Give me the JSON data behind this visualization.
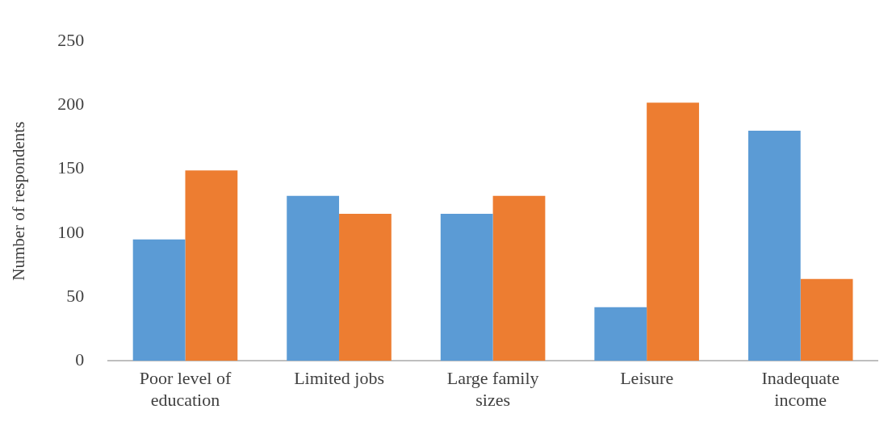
{
  "chart_data": {
    "type": "bar",
    "ylabel": "Number of respondents",
    "categories": [
      "Poor level of education",
      "Limited jobs",
      "Large family sizes",
      "Leisure",
      "Inadequate income"
    ],
    "series": [
      {
        "color": "#5b9bd5",
        "values": [
          95,
          129,
          115,
          42,
          180
        ]
      },
      {
        "color": "#ed7d31",
        "values": [
          149,
          115,
          129,
          202,
          64
        ]
      }
    ],
    "ylim": [
      0,
      250
    ],
    "yticks": [
      0,
      50,
      100,
      150,
      200,
      250
    ],
    "grid": false,
    "legend": false
  }
}
